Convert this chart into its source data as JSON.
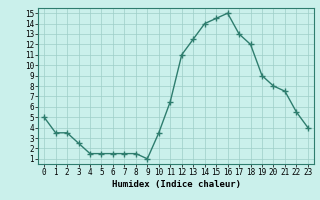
{
  "x": [
    0,
    1,
    2,
    3,
    4,
    5,
    6,
    7,
    8,
    9,
    10,
    11,
    12,
    13,
    14,
    15,
    16,
    17,
    18,
    19,
    20,
    21,
    22,
    23
  ],
  "y": [
    5.0,
    3.5,
    3.5,
    2.5,
    1.5,
    1.5,
    1.5,
    1.5,
    1.5,
    1.0,
    3.5,
    6.5,
    11.0,
    12.5,
    14.0,
    14.5,
    15.0,
    13.0,
    12.0,
    9.0,
    8.0,
    7.5,
    5.5,
    4.0
  ],
  "line_color": "#2e7d6e",
  "marker": "+",
  "bg_color": "#caf0eb",
  "grid_color": "#9ecec8",
  "xlabel": "Humidex (Indice chaleur)",
  "xlabel_fontsize": 6.5,
  "xlabel_bold": true,
  "xlim": [
    -0.5,
    23.5
  ],
  "ylim": [
    0.5,
    15.5
  ],
  "xticks": [
    0,
    1,
    2,
    3,
    4,
    5,
    6,
    7,
    8,
    9,
    10,
    11,
    12,
    13,
    14,
    15,
    16,
    17,
    18,
    19,
    20,
    21,
    22,
    23
  ],
  "yticks": [
    1,
    2,
    3,
    4,
    5,
    6,
    7,
    8,
    9,
    10,
    11,
    12,
    13,
    14,
    15
  ],
  "tick_fontsize": 5.5,
  "line_width": 1.0,
  "marker_size": 4
}
